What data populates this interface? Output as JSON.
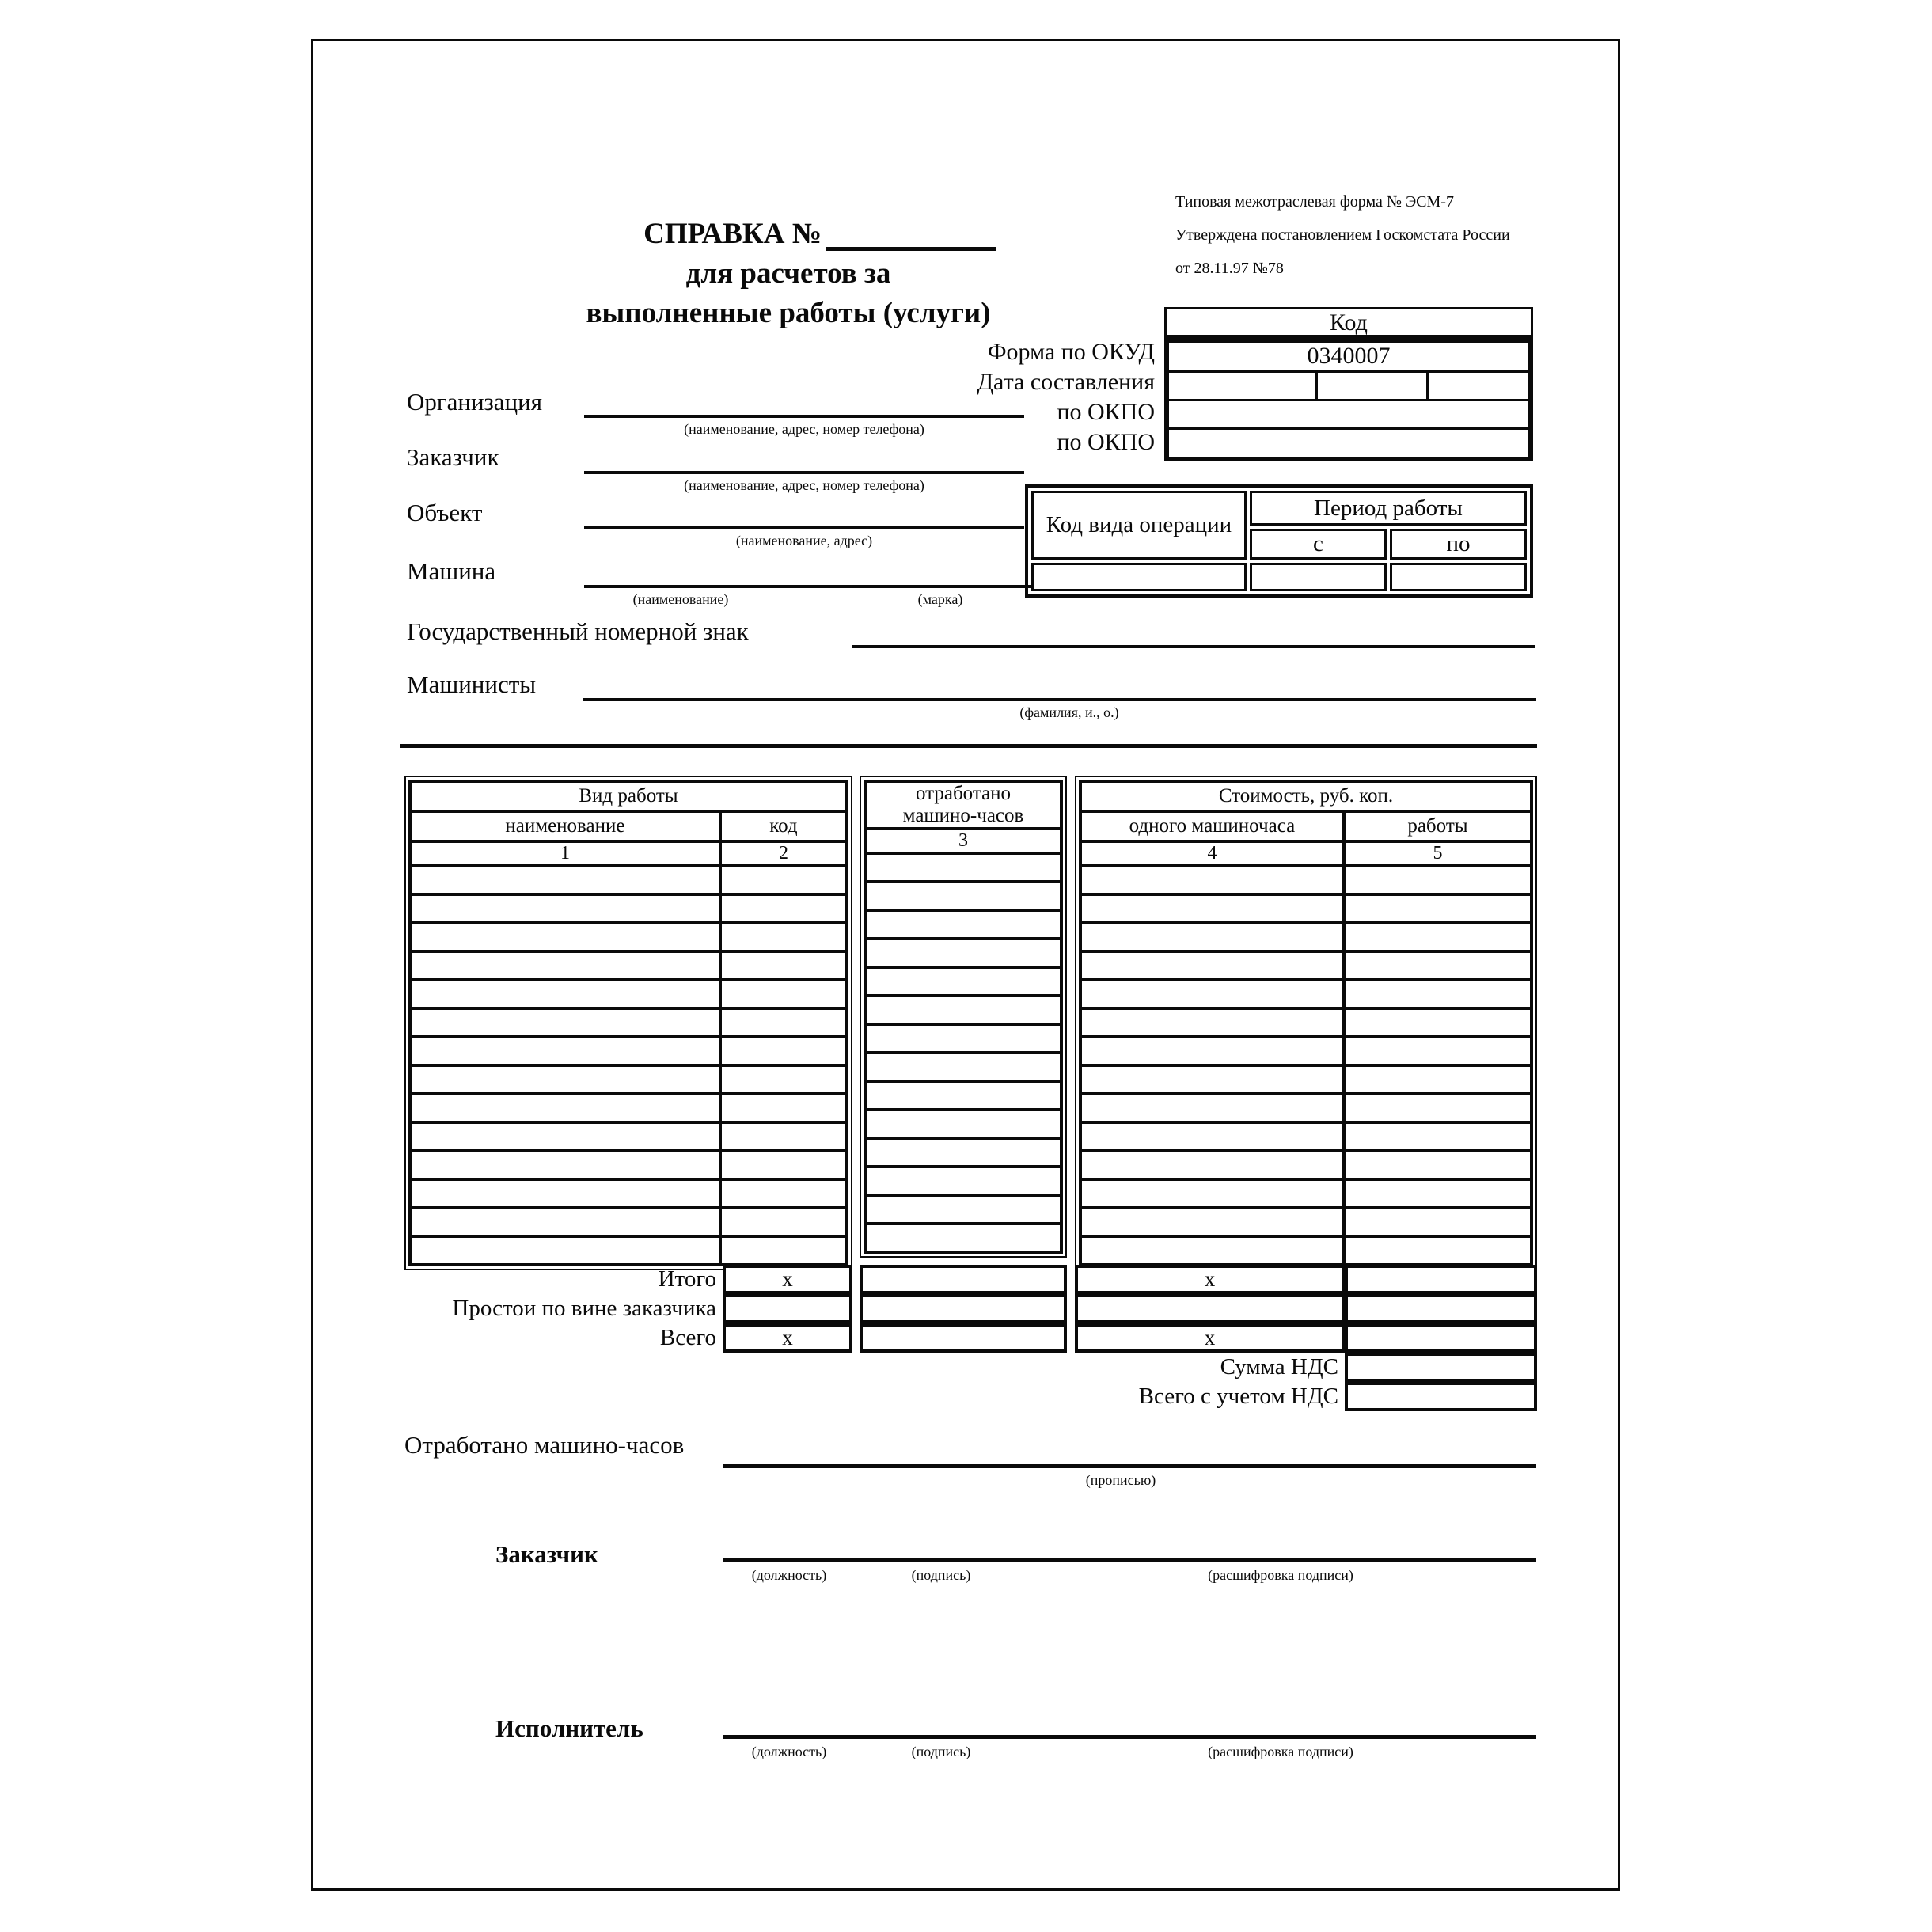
{
  "form_info": {
    "line1": "Типовая межотраслевая форма № ЭСМ-7",
    "line2": "Утверждена постановлением Госкомстата России",
    "line3": "от 28.11.97 №78"
  },
  "title": {
    "line1": "СПРАВКА №",
    "line2": "для расчетов за",
    "line3": "выполненные работы (услуги)"
  },
  "code_box": {
    "header": "Код",
    "rows": [
      {
        "label": "Форма по ОКУД",
        "value": "0340007"
      },
      {
        "label": "Дата составления",
        "value": ""
      },
      {
        "label": "по ОКПО",
        "value": ""
      },
      {
        "label": "по ОКПО",
        "value": ""
      }
    ]
  },
  "fields": {
    "organization": {
      "label": "Организация",
      "hint": "(наименование, адрес, номер телефона)"
    },
    "customer": {
      "label": "Заказчик",
      "hint": "(наименование, адрес, номер телефона)"
    },
    "object": {
      "label": "Объект",
      "hint": "(наименование, адрес)"
    },
    "machine": {
      "label": "Машина",
      "hint_name": "(наименование)",
      "hint_brand": "(марка)"
    },
    "state_number": {
      "label": "Государственный номерной знак"
    },
    "operators": {
      "label": "Машинисты",
      "hint": "(фамилия, и., о.)"
    }
  },
  "operation_box": {
    "code_label": "Код вида операции",
    "period_label": "Период работы",
    "from_label": "с",
    "to_label": "по"
  },
  "work_table": {
    "group_work": "Вид работы",
    "col_name": "наименование",
    "col_code": "код",
    "group_hours_line1": "отработано",
    "group_hours_line2": "машино-часов",
    "group_cost": "Стоимость, руб. коп.",
    "col_cost_hour": "одного машиночаса",
    "col_cost_work": "работы",
    "numbers": [
      "1",
      "2",
      "3",
      "4",
      "5"
    ],
    "empty_row_count": 14
  },
  "totals": {
    "itogo_label": "Итого",
    "itogo_col2": "х",
    "itogo_col4": "х",
    "prostoi_label": "Простои по вине заказчика",
    "vsego_label": "Всего",
    "vsego_col2": "х",
    "vsego_col4": "х",
    "nds_label": "Сумма НДС",
    "total_nds_label": "Всего с учетом НДС"
  },
  "bottom": {
    "worked_label": "Отработано машино-часов",
    "worked_hint": "(прописью)",
    "customer_label": "Заказчик",
    "executor_label": "Исполнитель",
    "hint_position": "(должность)",
    "hint_signature": "(подпись)",
    "hint_decrypt": "(расшифровка подписи)"
  }
}
